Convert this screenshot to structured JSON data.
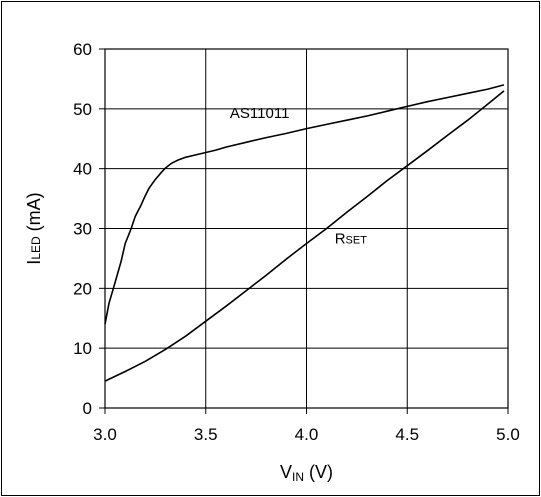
{
  "chart_data": {
    "type": "line",
    "xlabel": {
      "main": "V",
      "sub": "IN",
      "unit": " (V)"
    },
    "ylabel": {
      "main": "I",
      "sub": "LED",
      "unit": " (mA)"
    },
    "xlim": [
      3.0,
      5.0
    ],
    "ylim": [
      0,
      60
    ],
    "xticks": [
      "3.0",
      "3.5",
      "4.0",
      "4.5",
      "5.0"
    ],
    "yticks": [
      "0",
      "10",
      "20",
      "30",
      "40",
      "50",
      "60"
    ],
    "grid": true,
    "series": [
      {
        "name": "AS11011",
        "label_main": "AS11011",
        "label_sub": "",
        "label_at": [
          3.62,
          48.5
        ],
        "x": [
          3.0,
          3.02,
          3.05,
          3.08,
          3.1,
          3.13,
          3.15,
          3.18,
          3.2,
          3.22,
          3.25,
          3.28,
          3.3,
          3.33,
          3.36,
          3.4,
          3.45,
          3.5,
          3.55,
          3.6,
          3.7,
          3.8,
          3.9,
          4.0,
          4.1,
          4.2,
          4.3,
          4.4,
          4.5,
          4.6,
          4.7,
          4.8,
          4.9,
          4.98
        ],
        "y": [
          14,
          17.5,
          21,
          24.5,
          27.5,
          30,
          32,
          34,
          35.5,
          36.8,
          38.2,
          39.4,
          40.1,
          40.9,
          41.4,
          41.9,
          42.3,
          42.7,
          43.1,
          43.6,
          44.4,
          45.2,
          45.9,
          46.7,
          47.4,
          48.1,
          48.8,
          49.6,
          50.4,
          51.2,
          51.9,
          52.6,
          53.3,
          54.0
        ]
      },
      {
        "name": "RSET",
        "label_main": "R",
        "label_sub": "SET",
        "label_at": [
          4.14,
          27.5
        ],
        "x": [
          3.0,
          3.1,
          3.2,
          3.3,
          3.4,
          3.5,
          3.6,
          3.7,
          3.8,
          3.9,
          4.0,
          4.1,
          4.2,
          4.3,
          4.4,
          4.5,
          4.6,
          4.7,
          4.8,
          4.9,
          4.98
        ],
        "y": [
          4.5,
          6.1,
          7.8,
          9.8,
          12.0,
          14.5,
          17.0,
          19.6,
          22.2,
          24.9,
          27.5,
          30.0,
          32.7,
          35.3,
          38.0,
          40.5,
          43.0,
          45.6,
          48.1,
          50.8,
          53.0
        ]
      }
    ]
  }
}
